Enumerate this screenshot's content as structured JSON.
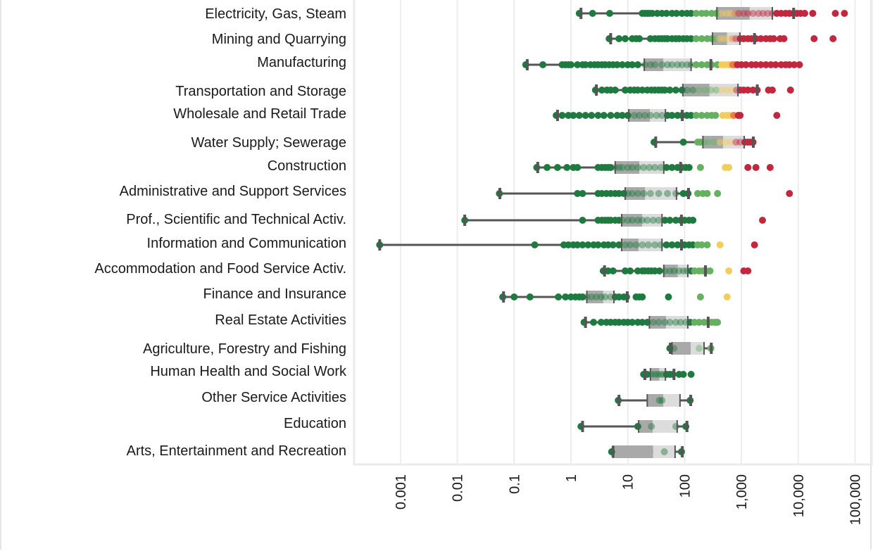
{
  "chart_data": {
    "type": "boxplot",
    "orientation": "horizontal",
    "title": "",
    "xlabel": "",
    "ylabel": "",
    "x_scale": "log",
    "xlim": [
      0.0002,
      150000
    ],
    "grid": true,
    "x_ticks": [
      {
        "value": 0.001,
        "label": "0.001"
      },
      {
        "value": 0.01,
        "label": "0.01"
      },
      {
        "value": 0.1,
        "label": "0.1"
      },
      {
        "value": 1,
        "label": "1"
      },
      {
        "value": 10,
        "label": "10"
      },
      {
        "value": 100,
        "label": "100"
      },
      {
        "value": 1000,
        "label": "1,000"
      },
      {
        "value": 10000,
        "label": "10,000"
      },
      {
        "value": 100000,
        "label": "100,000"
      }
    ],
    "color_scale": [
      {
        "max": 150,
        "color": "#1e7a3f"
      },
      {
        "max": 400,
        "color": "#66b062"
      },
      {
        "max": 700,
        "color": "#f2cd5c"
      },
      {
        "max": 800,
        "color": "#f07c44"
      },
      {
        "max": 1000000000000.0,
        "color": "#c1283d"
      }
    ],
    "box_colors": {
      "lower": "#a9a9a9",
      "upper": "#dcdcdc",
      "whisker": "#555555"
    },
    "categories": [
      {
        "name": "Electricity, Gas, Steam",
        "min": 1.5,
        "q1": 370,
        "median": 1400,
        "q3": 3500,
        "max": 8300,
        "points": [
          1.4,
          2.4,
          4.8,
          18,
          20,
          22,
          24,
          27,
          33,
          40,
          48,
          60,
          72,
          90,
          110,
          130,
          160,
          200,
          240,
          300,
          360,
          450,
          550,
          650,
          780,
          900,
          1100,
          1300,
          1600,
          2000,
          2400,
          2900,
          3500,
          4200,
          5000,
          6000,
          7000,
          8300,
          9500,
          11000,
          13000,
          18000,
          45000,
          65000
        ]
      },
      {
        "name": "Mining and Quarrying",
        "min": 5,
        "q1": 310,
        "median": 560,
        "q3": 940,
        "max": 1700,
        "points": [
          4.7,
          7,
          9,
          12,
          14,
          16,
          25,
          30,
          35,
          40,
          45,
          50,
          60,
          70,
          80,
          95,
          110,
          130,
          160,
          200,
          250,
          300,
          350,
          420,
          500,
          600,
          700,
          800,
          950,
          1100,
          1300,
          1500,
          1800,
          2200,
          2700,
          3200,
          3700,
          4800,
          5600,
          19000,
          41000
        ]
      },
      {
        "name": "Manufacturing",
        "min": 0.17,
        "q1": 19.5,
        "median": 42,
        "q3": 130,
        "max": 290,
        "points": [
          0.16,
          0.32,
          0.7,
          0.8,
          0.9,
          1.0,
          1.3,
          1.6,
          1.8,
          2.2,
          2.6,
          3.0,
          3.5,
          4.0,
          4.7,
          5.5,
          6.5,
          8,
          10,
          12,
          15,
          20,
          25,
          30,
          40,
          50,
          60,
          75,
          90,
          110,
          130,
          160,
          200,
          250,
          300,
          380,
          450,
          520,
          600,
          700,
          760,
          850,
          1000,
          1200,
          1500,
          1800,
          2200,
          2700,
          3300,
          4000,
          5000,
          6000,
          7000,
          8500,
          10500
        ]
      },
      {
        "name": "Transportation and Storage",
        "min": 2.8,
        "q1": 93,
        "median": 275,
        "q3": 870,
        "max": 1900,
        "points": [
          2.7,
          3.5,
          4.3,
          5,
          6,
          9,
          11,
          13,
          15,
          18,
          22,
          26,
          30,
          35,
          40,
          45,
          55,
          70,
          90,
          110,
          140,
          180,
          230,
          290,
          360,
          450,
          560,
          680,
          820,
          950,
          1100,
          1300,
          1600,
          1900,
          3000,
          3500,
          7300
        ]
      },
      {
        "name": "Wholesale and Retail Trade",
        "min": 0.58,
        "q1": 10.4,
        "median": 24.5,
        "q3": 46,
        "max": 91,
        "points": [
          0.55,
          0.7,
          0.9,
          1.1,
          1.4,
          1.8,
          2.3,
          3,
          3.8,
          5,
          6.5,
          8,
          10,
          13,
          16,
          20,
          25,
          32,
          40,
          50,
          60,
          75,
          90,
          110,
          130,
          160,
          200,
          250,
          300,
          350,
          470,
          550,
          620,
          730,
          880,
          950,
          4200
        ]
      },
      {
        "name": "Water Supply; Sewerage",
        "min": 31,
        "q1": 210,
        "median": 475,
        "q3": 1120,
        "max": 1620,
        "points": [
          29,
          95,
          170,
          190,
          220,
          260,
          330,
          420,
          520,
          640,
          800,
          950,
          1150,
          1300,
          1450,
          1600
        ]
      },
      {
        "name": "Construction",
        "min": 0.26,
        "q1": 6,
        "median": 16,
        "q3": 43,
        "max": 85,
        "points": [
          0.25,
          0.38,
          0.58,
          0.85,
          1.1,
          1.3,
          3,
          3.5,
          4,
          4.5,
          5,
          6,
          7,
          8,
          10,
          12,
          15,
          19,
          24,
          30,
          38,
          48,
          60,
          75,
          90,
          105,
          120,
          190,
          520,
          600,
          1300,
          1800,
          3200
        ]
      },
      {
        "name": "Administrative and Support Services",
        "min": 0.056,
        "q1": 9,
        "median": 20,
        "q3": 72,
        "max": 117,
        "points": [
          0.055,
          1.3,
          1.6,
          3,
          3.5,
          4.2,
          5,
          6,
          7,
          8.5,
          10,
          12,
          15,
          19,
          25,
          35,
          50,
          70,
          95,
          115,
          170,
          210,
          250,
          380,
          7000
        ]
      },
      {
        "name": "Prof., Scientific and Technical Activ.",
        "min": 0.0135,
        "q1": 7.8,
        "median": 18,
        "q3": 40,
        "max": 88,
        "points": [
          0.0135,
          1.6,
          3,
          3.5,
          4,
          4.5,
          5,
          6,
          7,
          8,
          10,
          12,
          15,
          18,
          22,
          28,
          35,
          45,
          55,
          70,
          85,
          100,
          120,
          140,
          2350
        ]
      },
      {
        "name": "Information and Communication",
        "min": 0.00043,
        "q1": 7.8,
        "median": 15.5,
        "q3": 40,
        "max": 88,
        "points": [
          0.00043,
          0.23,
          0.75,
          0.9,
          1.1,
          1.3,
          1.6,
          2,
          2.5,
          3,
          3.8,
          4.5,
          5.5,
          7,
          9,
          11,
          14,
          18,
          23,
          30,
          38,
          48,
          60,
          75,
          90,
          100,
          120,
          140,
          170,
          200,
          250,
          420,
          1700
        ]
      },
      {
        "name": "Accommodation and Food Service Activ.",
        "min": 3.9,
        "q1": 43,
        "median": 76,
        "q3": 114,
        "max": 233,
        "points": [
          3.7,
          4.5,
          5.5,
          9,
          11,
          15,
          18,
          20,
          23,
          26,
          30,
          36,
          45,
          55,
          65,
          80,
          95,
          110,
          130,
          150,
          180,
          210,
          240,
          280,
          600,
          1100,
          1300
        ]
      },
      {
        "name": "Finance and Insurance",
        "min": 0.065,
        "q1": 1.9,
        "median": 3.7,
        "q3": 5.7,
        "max": 9.8,
        "points": [
          0.063,
          0.1,
          0.19,
          0.6,
          0.8,
          1.0,
          1.2,
          1.4,
          1.6,
          1.9,
          2.3,
          2.8,
          3.4,
          4,
          5,
          6,
          7,
          8.5,
          9.5,
          14,
          16,
          18,
          52,
          190,
          560
        ]
      },
      {
        "name": "Real Estate Activities",
        "min": 1.8,
        "q1": 24,
        "median": 47,
        "q3": 114,
        "max": 260,
        "points": [
          1.7,
          2.5,
          3.4,
          4.2,
          5,
          6,
          7,
          8.5,
          10,
          12,
          15,
          18,
          22,
          28,
          35,
          45,
          55,
          70,
          85,
          105,
          125,
          150,
          180,
          220,
          260,
          300,
          340,
          380
        ]
      },
      {
        "name": "Agriculture, Forestry and Fishing",
        "min": 56,
        "q1": 60,
        "median": 128,
        "q3": 220,
        "max": 295,
        "points": [
          55,
          65,
          180,
          290
        ]
      },
      {
        "name": "Human Health and Social Work",
        "min": 20,
        "q1": 25,
        "median": 36,
        "q3": 46,
        "max": 65,
        "points": [
          19,
          22,
          26,
          30,
          34,
          38,
          42,
          48,
          55,
          62,
          80,
          95,
          130
        ]
      },
      {
        "name": "Other Service Activities",
        "min": 7,
        "q1": 22,
        "median": 42,
        "q3": 83,
        "max": 128,
        "points": [
          6.8,
          36,
          40,
          125
        ]
      },
      {
        "name": "Education",
        "min": 1.6,
        "q1": 15.5,
        "median": 27.5,
        "q3": 74,
        "max": 110,
        "points": [
          1.5,
          15,
          26,
          70,
          105
        ]
      },
      {
        "name": "Arts, Entertainment and Recreation",
        "min": 5.5,
        "q1": 5.5,
        "median": 28,
        "q3": 68,
        "max": 91,
        "points": [
          5.2,
          44,
          88
        ]
      }
    ]
  }
}
